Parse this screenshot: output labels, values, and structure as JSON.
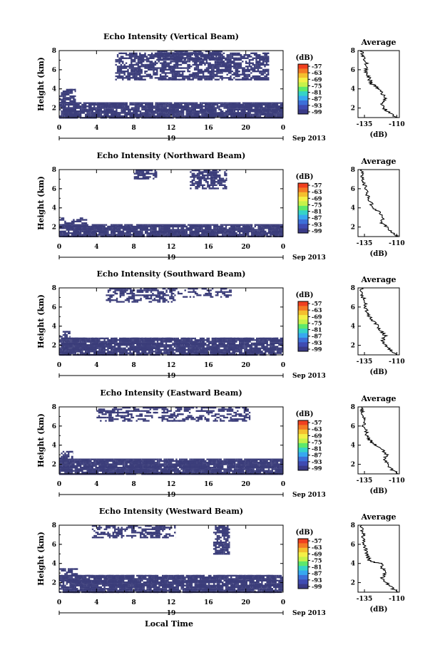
{
  "chart_data": {
    "type": "heatmap",
    "shared": {
      "x_ticks": [
        "0",
        "4",
        "8",
        "12",
        "16",
        "20",
        "0"
      ],
      "date_label": "19",
      "date_suffix": "Sep 2013",
      "xlabel": "Local Time",
      "ylabel": "Height (km)",
      "y_ticks": [
        "2",
        "4",
        "6",
        "8"
      ],
      "ylim": [
        1,
        8
      ],
      "xlim": [
        0,
        24
      ],
      "colorbar_unit": "(dB)",
      "colorbar_ticks": [
        "-57",
        "-63",
        "-69",
        "-75",
        "-81",
        "-87",
        "-93",
        "-99"
      ],
      "colorbar_colors": [
        "#f04020",
        "#f47a25",
        "#f4bf2e",
        "#f4f046",
        "#c6f24a",
        "#5de86b",
        "#35d3c7",
        "#37a8f0",
        "#3d6fd8",
        "#3f4bb2",
        "#3a3a86"
      ],
      "fill_color": "#3b3d7a",
      "avg_title": "Average",
      "avg_x_ticks": [
        "-135",
        "-110"
      ],
      "avg_xlim": [
        -140,
        -108
      ],
      "avg_xlabel": "(dB)",
      "avg_y_ticks": [
        "2",
        "4",
        "6",
        "8"
      ]
    },
    "panels": [
      {
        "title": "Echo Intensity (Vertical Beam)",
        "bands": [
          {
            "x0": 0,
            "x1": 24,
            "y0": 1.0,
            "y1": 2.6,
            "density": 0.85
          },
          {
            "x0": 0,
            "x1": 1.8,
            "y0": 2.6,
            "y1": 4.0,
            "density": 0.45
          },
          {
            "x0": 6.0,
            "x1": 22.5,
            "y0": 5.0,
            "y1": 7.8,
            "density": 0.5
          },
          {
            "x0": 10.5,
            "x1": 17.5,
            "y0": 7.0,
            "y1": 8.0,
            "density": 0.55
          }
        ],
        "average": {
          "heights": [
            1.0,
            1.5,
            2.0,
            2.5,
            3.0,
            3.5,
            4.0,
            4.3,
            4.6,
            5.0,
            5.5,
            6.0,
            6.5,
            7.0,
            7.5,
            8.0
          ],
          "values": [
            -110,
            -116,
            -120,
            -122,
            -118,
            -121,
            -124,
            -127,
            -130,
            -131,
            -133,
            -134,
            -133,
            -135,
            -136,
            -137
          ]
        }
      },
      {
        "title": "Echo Intensity (Northward Beam)",
        "bands": [
          {
            "x0": 0,
            "x1": 24,
            "y0": 1.0,
            "y1": 2.3,
            "density": 0.8
          },
          {
            "x0": 0,
            "x1": 3.0,
            "y0": 2.3,
            "y1": 3.0,
            "density": 0.3
          },
          {
            "x0": 8.0,
            "x1": 10.5,
            "y0": 7.0,
            "y1": 8.0,
            "density": 0.5
          },
          {
            "x0": 14.0,
            "x1": 18.0,
            "y0": 6.0,
            "y1": 8.0,
            "density": 0.45
          }
        ],
        "average": {
          "heights": [
            1.0,
            1.5,
            2.0,
            2.5,
            3.0,
            3.5,
            4.0,
            4.5,
            5.0,
            5.5,
            6.0,
            6.5,
            7.0,
            7.5,
            8.0
          ],
          "values": [
            -110,
            -114,
            -118,
            -122,
            -120,
            -123,
            -128,
            -130,
            -132,
            -133,
            -134,
            -135,
            -136,
            -137,
            -137
          ]
        }
      },
      {
        "title": "Echo Intensity (Southward Beam)",
        "bands": [
          {
            "x0": 0,
            "x1": 24,
            "y0": 1.0,
            "y1": 2.8,
            "density": 0.8
          },
          {
            "x0": 0,
            "x1": 1.2,
            "y0": 2.8,
            "y1": 3.5,
            "density": 0.35
          },
          {
            "x0": 5.0,
            "x1": 12.5,
            "y0": 6.5,
            "y1": 8.0,
            "density": 0.35
          },
          {
            "x0": 12.5,
            "x1": 18.5,
            "y0": 7.0,
            "y1": 8.0,
            "density": 0.3
          }
        ],
        "average": {
          "heights": [
            1.0,
            1.5,
            2.0,
            2.5,
            3.0,
            3.5,
            4.0,
            4.5,
            5.0,
            5.5,
            6.0,
            6.5,
            7.0,
            7.5,
            8.0
          ],
          "values": [
            -110,
            -115,
            -119,
            -121,
            -119,
            -122,
            -125,
            -128,
            -131,
            -133,
            -134,
            -135,
            -136,
            -137,
            -137
          ]
        }
      },
      {
        "title": "Echo Intensity (Eastward Beam)",
        "bands": [
          {
            "x0": 0,
            "x1": 24,
            "y0": 1.0,
            "y1": 2.6,
            "density": 0.85
          },
          {
            "x0": 0,
            "x1": 1.5,
            "y0": 2.6,
            "y1": 3.4,
            "density": 0.5
          },
          {
            "x0": 4.0,
            "x1": 20.5,
            "y0": 6.5,
            "y1": 8.0,
            "density": 0.3
          }
        ],
        "average": {
          "heights": [
            1.0,
            1.5,
            2.0,
            2.5,
            3.0,
            3.5,
            4.0,
            4.3,
            4.6,
            5.0,
            5.5,
            6.0,
            6.5,
            7.0,
            7.5,
            8.0
          ],
          "values": [
            -110,
            -114,
            -117,
            -120,
            -118,
            -121,
            -126,
            -130,
            -131,
            -133,
            -134,
            -136,
            -135,
            -136,
            -137,
            -137
          ]
        }
      },
      {
        "title": "Echo Intensity (Westward Beam)",
        "bands": [
          {
            "x0": 0,
            "x1": 24,
            "y0": 1.0,
            "y1": 2.8,
            "density": 0.8
          },
          {
            "x0": 0,
            "x1": 2.0,
            "y0": 2.8,
            "y1": 3.5,
            "density": 0.4
          },
          {
            "x0": 3.5,
            "x1": 12.5,
            "y0": 6.8,
            "y1": 8.0,
            "density": 0.3
          },
          {
            "x0": 16.5,
            "x1": 18.3,
            "y0": 5.0,
            "y1": 8.0,
            "density": 0.6
          }
        ],
        "average": {
          "heights": [
            1.0,
            1.5,
            2.0,
            2.5,
            3.0,
            3.5,
            4.0,
            4.1,
            4.3,
            4.6,
            5.0,
            5.5,
            6.0,
            6.5,
            7.0,
            7.5,
            8.0
          ],
          "values": [
            -110,
            -114,
            -118,
            -121,
            -119,
            -121,
            -122,
            -127,
            -131,
            -132,
            -133,
            -134,
            -135,
            -136,
            -136,
            -137,
            -137
          ]
        }
      }
    ]
  }
}
